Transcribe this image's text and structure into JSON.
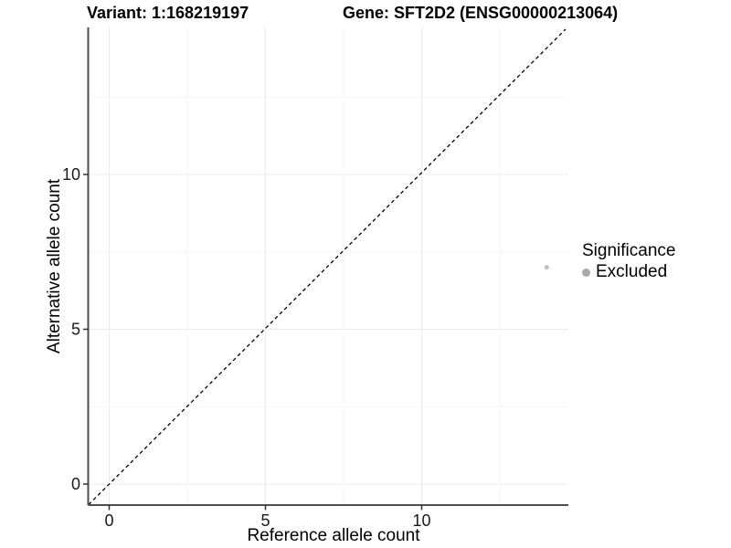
{
  "chart_data": {
    "type": "scatter",
    "titles": [
      "Variant: 1:168219197",
      "Gene: SFT2D2 (ENSG00000213064)"
    ],
    "xlabel": "Reference allele count",
    "ylabel": "Alternative allele count",
    "xlim": [
      -0.7,
      14.7
    ],
    "ylim": [
      -0.7,
      14.7
    ],
    "x_ticks": [
      0,
      5,
      10
    ],
    "y_ticks": [
      0,
      5,
      10
    ],
    "x_tick_labels": [
      "0",
      "5",
      "10"
    ],
    "y_tick_labels": [
      "0",
      "5",
      "10"
    ],
    "grid": {
      "major": [
        0,
        5,
        10
      ],
      "minor": [
        2.5,
        7.5,
        12.5
      ],
      "visible": true
    },
    "reference_line": {
      "kind": "identity y=x",
      "style": "dashed",
      "color": "#000000"
    },
    "series": [
      {
        "name": "Excluded",
        "color": "#bebebe",
        "points": [
          {
            "x": 14,
            "y": 7
          }
        ]
      }
    ],
    "legend": {
      "title": "Significance",
      "position": "right",
      "entries": [
        {
          "label": "Excluded",
          "color": "#a9a9a9",
          "marker": "circle"
        }
      ]
    }
  },
  "colors": {
    "background": "#ffffff",
    "grid_major": "#ececec",
    "grid_minor": "#f6f6f6",
    "axis_line": "#4d4d4d",
    "tick_text": "#1a1a1a",
    "point": "#bebebe",
    "legend_point": "#a9a9a9"
  }
}
